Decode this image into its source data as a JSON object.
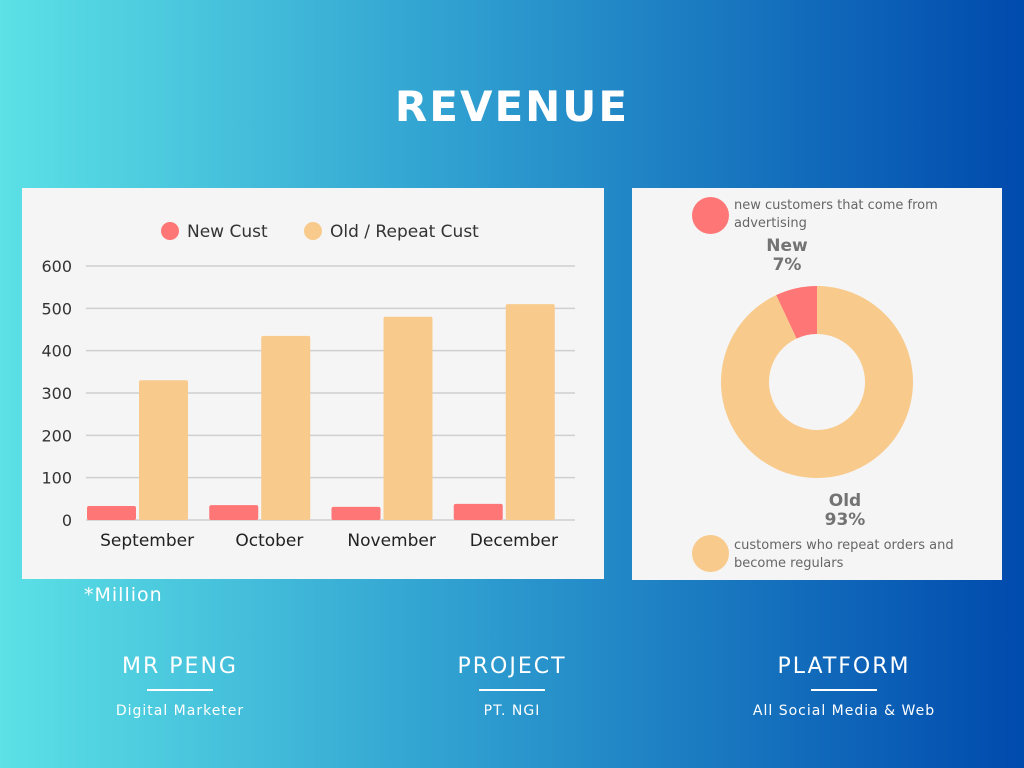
{
  "title": "REVENUE",
  "note": "*Million",
  "chart_data": [
    {
      "type": "bar",
      "title": "",
      "xlabel": "",
      "ylabel": "",
      "ylim": [
        0,
        600
      ],
      "yticks": [
        0,
        100,
        200,
        300,
        400,
        500,
        600
      ],
      "categories": [
        "September",
        "October",
        "November",
        "December"
      ],
      "series": [
        {
          "name": "New Cust",
          "color": "#ff7676",
          "values": [
            33,
            35,
            31,
            38
          ]
        },
        {
          "name": "Old / Repeat Cust",
          "color": "#f8ca8c",
          "values": [
            330,
            435,
            480,
            510
          ]
        }
      ],
      "legend": "top",
      "grid": true
    },
    {
      "type": "pie",
      "donut": true,
      "slices": [
        {
          "name": "New",
          "value": 7,
          "label": "7%",
          "color": "#ff7676",
          "description": "new customers that come from advertising"
        },
        {
          "name": "Old",
          "value": 93,
          "label": "93%",
          "color": "#f8ca8c",
          "description": "customers who repeat orders and become regulars"
        }
      ]
    }
  ],
  "footer": [
    {
      "heading": "MR PENG",
      "sub": "Digital Marketer"
    },
    {
      "heading": "PROJECT",
      "sub": "PT. NGI"
    },
    {
      "heading": "PLATFORM",
      "sub": "All Social Media & Web"
    }
  ]
}
